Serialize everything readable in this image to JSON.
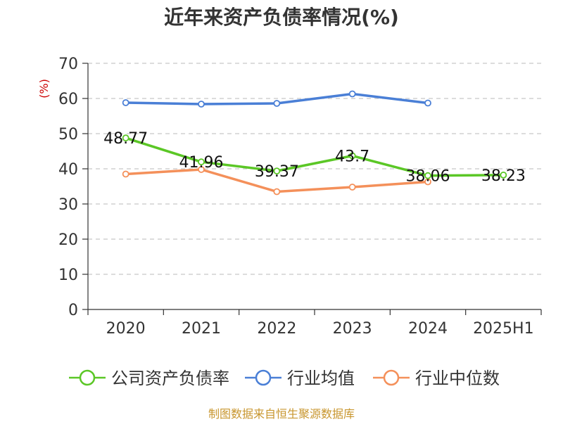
{
  "chart_data": {
    "type": "line",
    "title": "近年来资产负债率情况(%)",
    "ylabel": "(%)",
    "xlabel": "",
    "categories": [
      "2020",
      "2021",
      "2022",
      "2023",
      "2024",
      "2025H1"
    ],
    "ylim": [
      0,
      70
    ],
    "yticks": [
      0,
      10,
      20,
      30,
      40,
      50,
      60,
      70
    ],
    "grid": true,
    "legend_position": "bottom",
    "series": [
      {
        "name": "公司资产负债率",
        "color": "#5bc726",
        "values": [
          48.77,
          41.96,
          39.37,
          43.7,
          38.06,
          38.23
        ],
        "data_labels": [
          "48.77",
          "41.96",
          "39.37",
          "43.7",
          "38.06",
          "38.23"
        ]
      },
      {
        "name": "行业均值",
        "color": "#4a7fd6",
        "values": [
          58.8,
          58.4,
          58.6,
          61.3,
          58.7,
          null
        ]
      },
      {
        "name": "行业中位数",
        "color": "#f4905a",
        "values": [
          38.5,
          39.8,
          33.5,
          34.8,
          36.3,
          null
        ]
      }
    ],
    "source": "制图数据来自恒生聚源数据库"
  }
}
